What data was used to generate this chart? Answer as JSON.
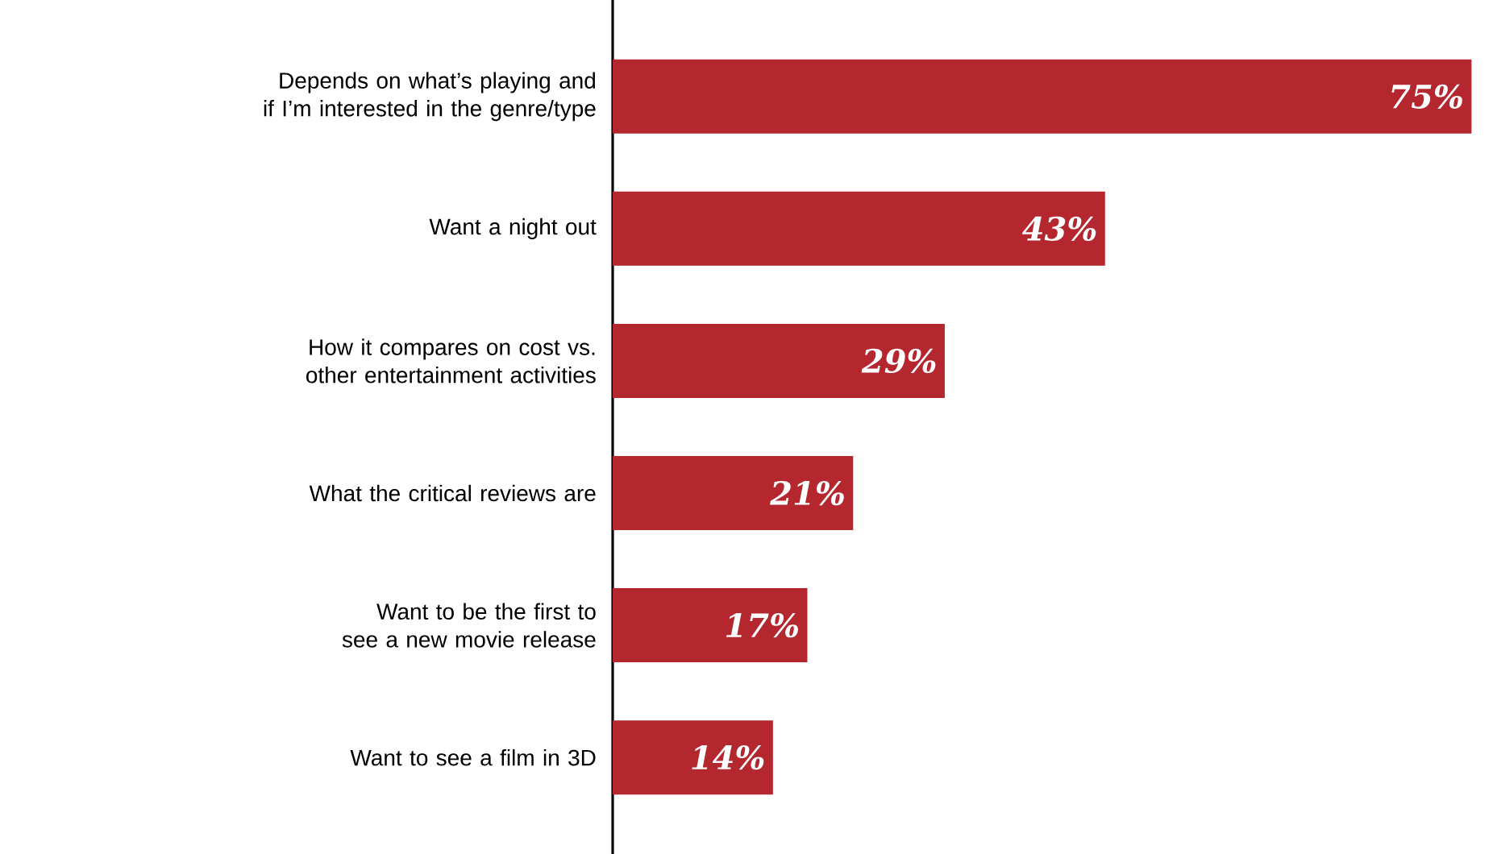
{
  "chart_data": {
    "type": "bar",
    "orientation": "horizontal",
    "color": "#b5272f",
    "categories": [
      "Depends on what’s playing and if I’m interested in the genre/type",
      "Want a night out",
      "How it compares on cost vs. other entertainment activities",
      "What the critical reviews are",
      "Want to be the first to see a new movie release",
      "Want to see a film in 3D"
    ],
    "values": [
      75,
      43,
      29,
      21,
      17,
      14
    ],
    "value_labels": [
      "75%",
      "43%",
      "29%",
      "21%",
      "17%",
      "14%"
    ]
  }
}
